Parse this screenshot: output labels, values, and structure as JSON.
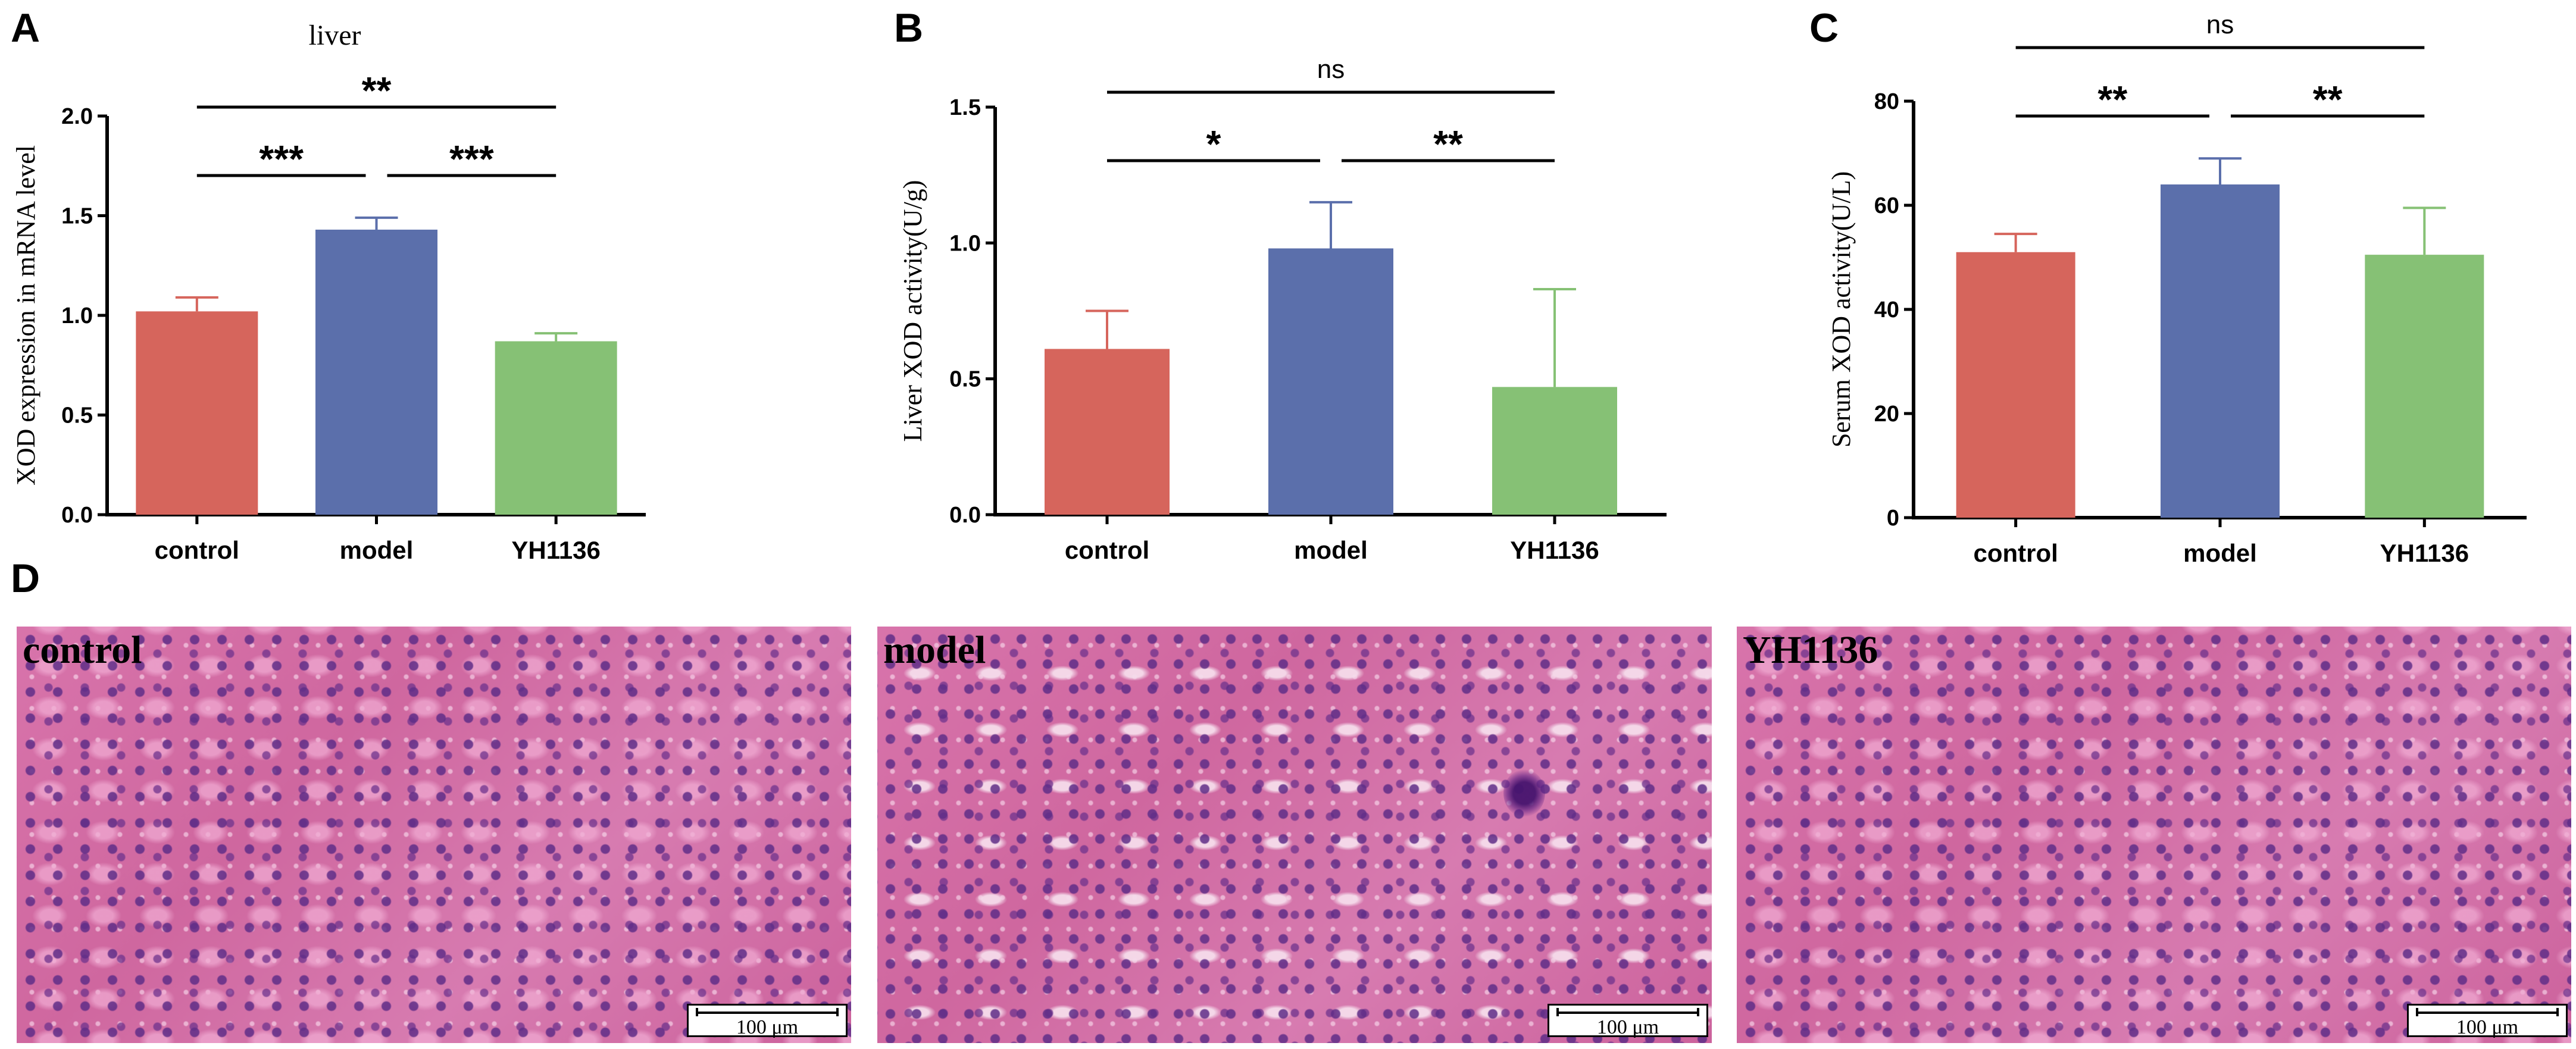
{
  "chart_data": [
    {
      "panel": "A",
      "type": "bar",
      "title": "liver",
      "ylabel": "XOD expression in mRNA level",
      "categories": [
        "control",
        "model",
        "YH1136"
      ],
      "values": [
        1.02,
        1.43,
        0.87
      ],
      "errors": [
        0.07,
        0.06,
        0.04
      ],
      "colors": [
        "#d6655c",
        "#5b6fab",
        "#86c175"
      ],
      "ylim": [
        0,
        2.0
      ],
      "yticks": [
        "0.0",
        "0.5",
        "1.0",
        "1.5",
        "2.0"
      ],
      "comparisons": [
        {
          "from": 0,
          "to": 1,
          "label": "***",
          "level": 0
        },
        {
          "from": 1,
          "to": 2,
          "label": "***",
          "level": 0
        },
        {
          "from": 0,
          "to": 2,
          "label": "**",
          "level": 1
        }
      ]
    },
    {
      "panel": "B",
      "type": "bar",
      "title": "",
      "ylabel": "Liver XOD activity(U/g)",
      "categories": [
        "control",
        "model",
        "YH1136"
      ],
      "values": [
        0.61,
        0.98,
        0.47
      ],
      "errors": [
        0.14,
        0.17,
        0.36
      ],
      "colors": [
        "#d6655c",
        "#5b6fab",
        "#86c175"
      ],
      "ylim": [
        0,
        1.5
      ],
      "yticks": [
        "0.0",
        "0.5",
        "1.0",
        "1.5"
      ],
      "comparisons": [
        {
          "from": 0,
          "to": 1,
          "label": "*",
          "level": 0
        },
        {
          "from": 1,
          "to": 2,
          "label": "**",
          "level": 0
        },
        {
          "from": 0,
          "to": 2,
          "label": "ns",
          "level": 1
        }
      ]
    },
    {
      "panel": "C",
      "type": "bar",
      "title": "",
      "ylabel": "Serum XOD activity(U/L)",
      "categories": [
        "control",
        "model",
        "YH1136"
      ],
      "values": [
        51,
        64,
        50.5
      ],
      "errors": [
        3.5,
        5,
        9
      ],
      "colors": [
        "#d6655c",
        "#5b6fab",
        "#86c175"
      ],
      "ylim": [
        0,
        80
      ],
      "yticks": [
        "0",
        "20",
        "40",
        "60",
        "80"
      ],
      "comparisons": [
        {
          "from": 0,
          "to": 1,
          "label": "**",
          "level": 0
        },
        {
          "from": 1,
          "to": 2,
          "label": "**",
          "level": 0
        },
        {
          "from": 0,
          "to": 2,
          "label": "ns",
          "level": 1
        }
      ]
    }
  ],
  "micrographs": {
    "panel": "D",
    "scale_label": "100 μm",
    "images": [
      {
        "label": "control"
      },
      {
        "label": "model"
      },
      {
        "label": "YH1136"
      }
    ]
  }
}
